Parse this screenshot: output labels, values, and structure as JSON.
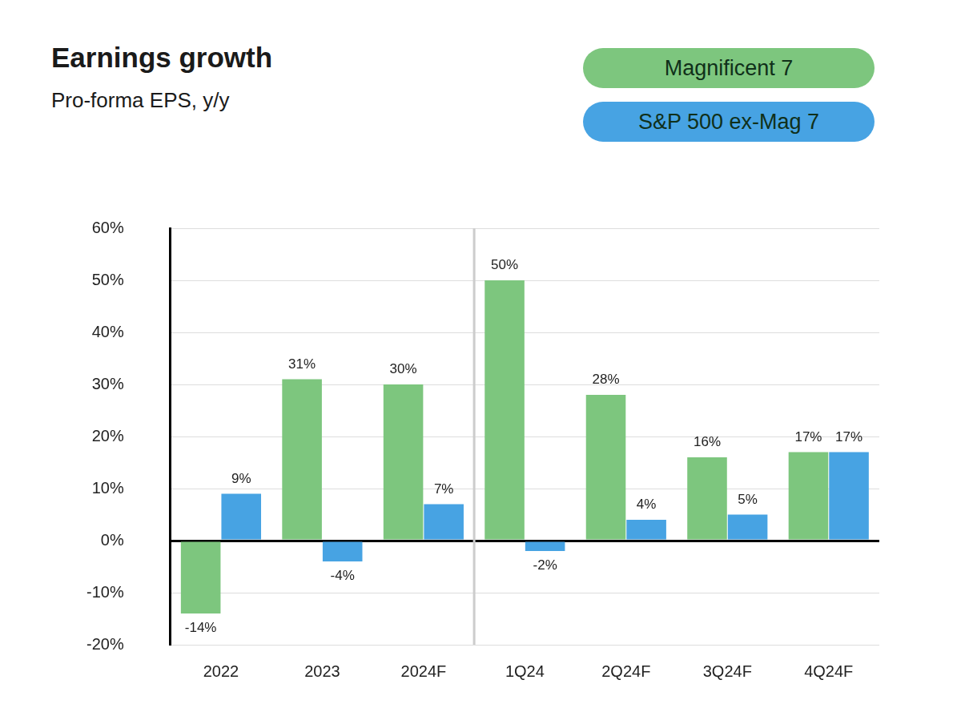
{
  "chart_data": {
    "type": "bar",
    "title": "Earnings growth",
    "subtitle": "Pro-forma EPS, y/y",
    "categories": [
      "2022",
      "2023",
      "2024F",
      "1Q24",
      "2Q24F",
      "3Q24F",
      "4Q24F"
    ],
    "series": [
      {
        "name": "Magnificent 7",
        "color": "#7dc67e",
        "values": [
          -14,
          31,
          30,
          50,
          28,
          16,
          17
        ],
        "value_labels": [
          "-14%",
          "31%",
          "30%",
          "50%",
          "28%",
          "16%",
          "17%"
        ]
      },
      {
        "name": "S&P 500 ex-Mag 7",
        "color": "#47a3e3",
        "values": [
          9,
          -4,
          7,
          -2,
          4,
          5,
          17
        ],
        "value_labels": [
          "9%",
          "-4%",
          "7%",
          "-2%",
          "4%",
          "5%",
          "17%"
        ]
      }
    ],
    "ylim": [
      -20,
      60
    ],
    "yticks": [
      {
        "value": -20,
        "label": "-20%"
      },
      {
        "value": -10,
        "label": "-10%"
      },
      {
        "value": 0,
        "label": "0%"
      },
      {
        "value": 10,
        "label": "10%"
      },
      {
        "value": 20,
        "label": "20%"
      },
      {
        "value": 30,
        "label": "30%"
      },
      {
        "value": 40,
        "label": "40%"
      },
      {
        "value": 50,
        "label": "50%"
      },
      {
        "value": 60,
        "label": "60%"
      }
    ],
    "grid": true,
    "legend": "upper right",
    "data_labels": true
  }
}
